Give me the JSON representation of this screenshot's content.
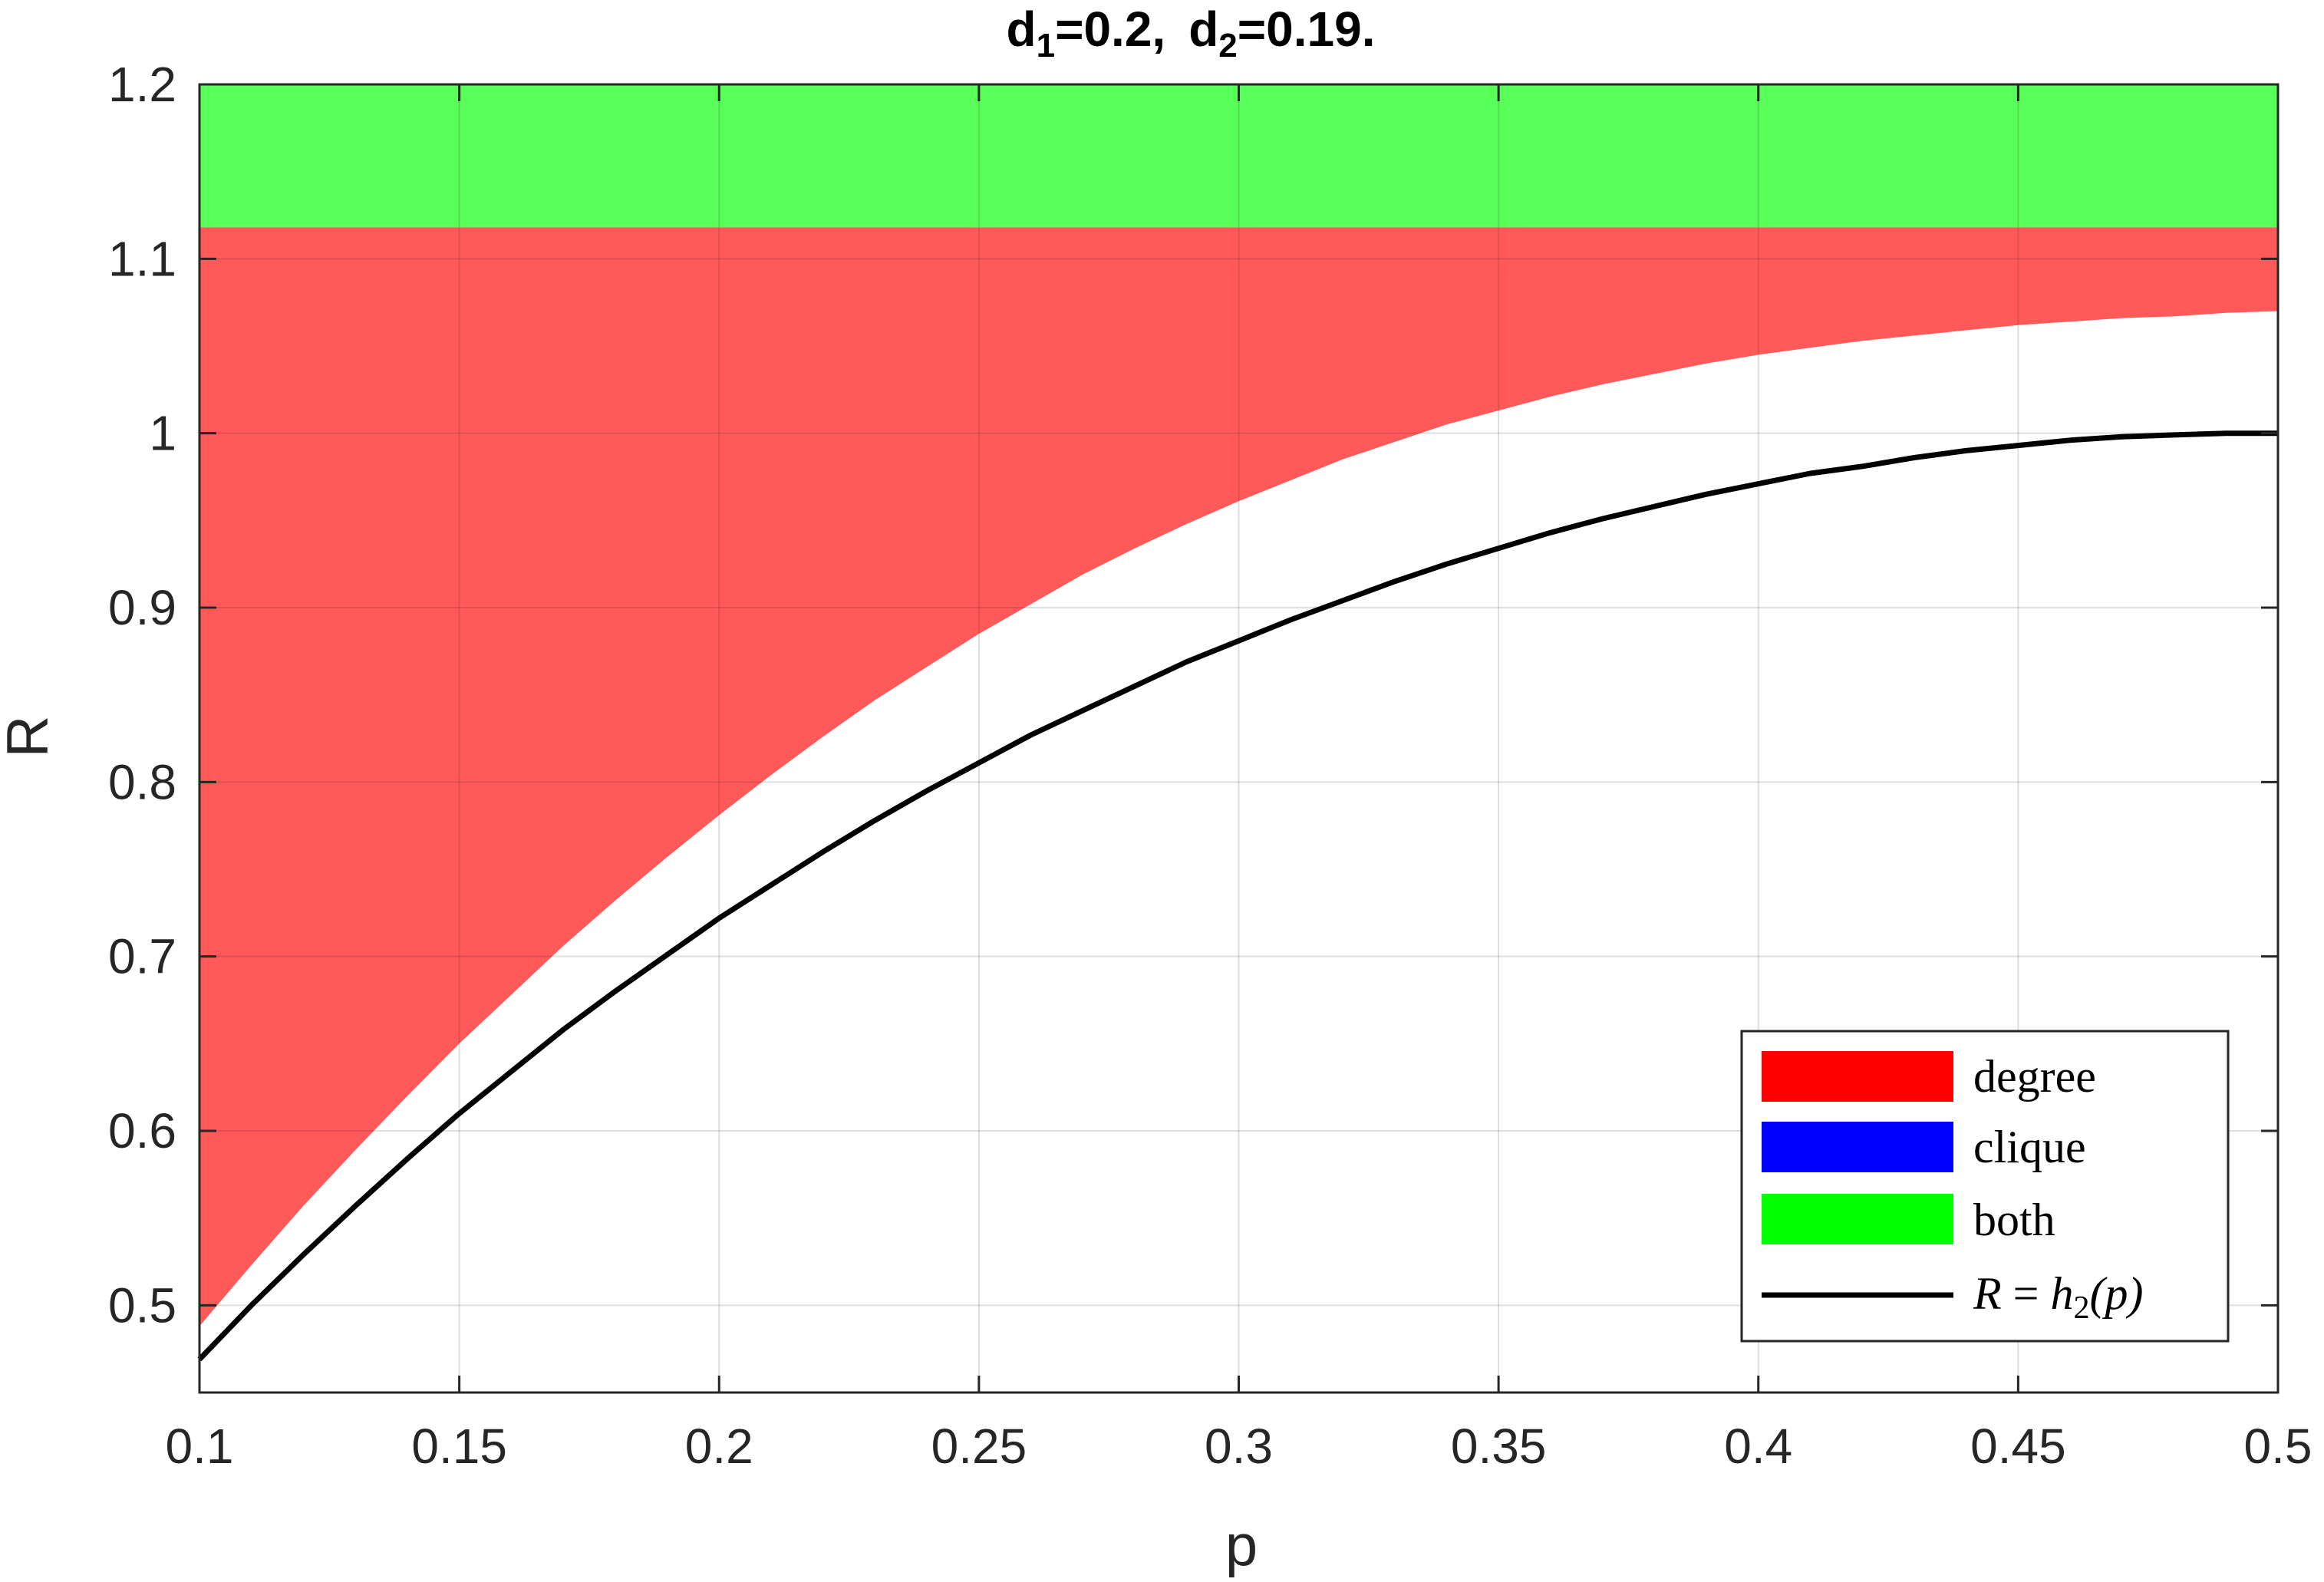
{
  "chart_data": {
    "type": "area",
    "title": {
      "d1_label": "d",
      "d1_sub": "1",
      "d1_value": "=0.2,",
      "d2_label": "d",
      "d2_sub": "2",
      "d2_value": "=0.19."
    },
    "xlabel": "p",
    "ylabel": "R",
    "xlim": [
      0.1,
      0.5
    ],
    "ylim": [
      0.45,
      1.2
    ],
    "xticks": [
      0.1,
      0.15,
      0.2,
      0.25,
      0.3,
      0.35,
      0.4,
      0.45,
      0.5
    ],
    "xtick_labels": [
      "0.1",
      "0.15",
      "0.2",
      "0.25",
      "0.3",
      "0.35",
      "0.4",
      "0.45",
      "0.5"
    ],
    "yticks": [
      0.5,
      0.6,
      0.7,
      0.8,
      0.9,
      1.0,
      1.1,
      1.2
    ],
    "ytick_labels": [
      "0.5",
      "0.6",
      "0.7",
      "0.8",
      "0.9",
      "1",
      "1.1",
      "1.2"
    ],
    "grid": true,
    "legend_position": "bottom-right",
    "series": [
      {
        "name": "degree",
        "kind": "region",
        "color": "#ff0000",
        "opacity": 0.65,
        "upper": 1.118,
        "lower_x": [
          0.1,
          0.11,
          0.12,
          0.13,
          0.14,
          0.15,
          0.16,
          0.17,
          0.18,
          0.19,
          0.2,
          0.21,
          0.22,
          0.23,
          0.24,
          0.25,
          0.26,
          0.27,
          0.28,
          0.29,
          0.3,
          0.31,
          0.32,
          0.33,
          0.34,
          0.35,
          0.36,
          0.37,
          0.38,
          0.39,
          0.4,
          0.41,
          0.42,
          0.43,
          0.44,
          0.45,
          0.46,
          0.47,
          0.48,
          0.49,
          0.5
        ],
        "lower_y": [
          0.488,
          0.523,
          0.557,
          0.589,
          0.62,
          0.65,
          0.678,
          0.706,
          0.732,
          0.757,
          0.781,
          0.804,
          0.826,
          0.847,
          0.866,
          0.885,
          0.902,
          0.919,
          0.934,
          0.948,
          0.961,
          0.973,
          0.985,
          0.995,
          1.005,
          1.013,
          1.021,
          1.028,
          1.034,
          1.04,
          1.045,
          1.049,
          1.053,
          1.056,
          1.059,
          1.062,
          1.064,
          1.066,
          1.067,
          1.069,
          1.07
        ]
      },
      {
        "name": "clique",
        "kind": "region",
        "color": "#0000ff",
        "opacity": 0.65
      },
      {
        "name": "both",
        "kind": "region",
        "color": "#00ff00",
        "opacity": 0.65,
        "lower": 1.118,
        "upper": 1.2
      },
      {
        "name": "R = h2(p)",
        "legend_parts": {
          "lhs": "R",
          "eq": " = ",
          "fn": "h",
          "sub": "2",
          "arg": "(p)"
        },
        "kind": "line",
        "color": "#000000",
        "x": [
          0.1,
          0.11,
          0.12,
          0.13,
          0.14,
          0.15,
          0.16,
          0.17,
          0.18,
          0.19,
          0.2,
          0.21,
          0.22,
          0.23,
          0.24,
          0.25,
          0.26,
          0.27,
          0.28,
          0.29,
          0.3,
          0.31,
          0.32,
          0.33,
          0.34,
          0.35,
          0.36,
          0.37,
          0.38,
          0.39,
          0.4,
          0.41,
          0.42,
          0.43,
          0.44,
          0.45,
          0.46,
          0.47,
          0.48,
          0.49,
          0.5
        ],
        "y": [
          0.469,
          0.5,
          0.529,
          0.557,
          0.584,
          0.61,
          0.634,
          0.658,
          0.68,
          0.701,
          0.722,
          0.741,
          0.76,
          0.778,
          0.795,
          0.811,
          0.827,
          0.841,
          0.855,
          0.869,
          0.881,
          0.893,
          0.904,
          0.915,
          0.925,
          0.934,
          0.943,
          0.951,
          0.958,
          0.965,
          0.971,
          0.977,
          0.981,
          0.986,
          0.99,
          0.993,
          0.996,
          0.998,
          0.999,
          1.0,
          1.0
        ]
      }
    ]
  }
}
